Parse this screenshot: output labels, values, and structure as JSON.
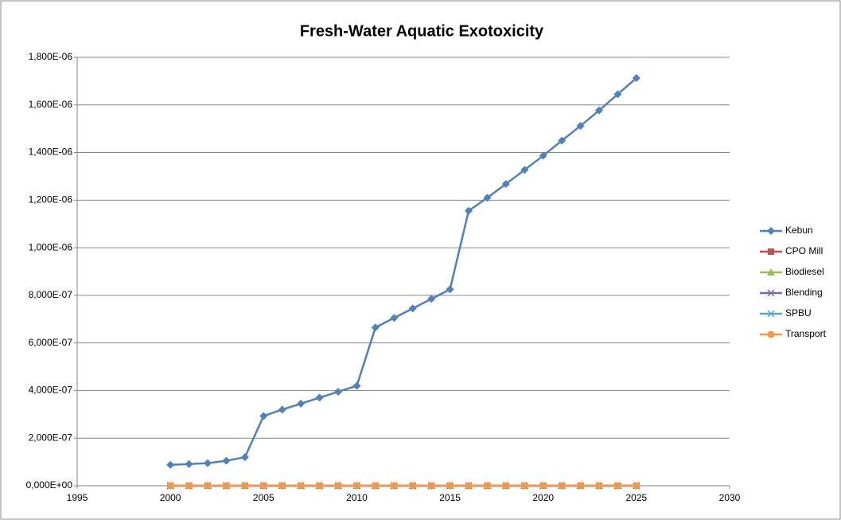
{
  "chart_data": {
    "type": "line",
    "title": "Fresh-Water Aquatic Exotoxicity",
    "x": [
      2000,
      2001,
      2002,
      2003,
      2004,
      2005,
      2006,
      2007,
      2008,
      2009,
      2010,
      2011,
      2012,
      2013,
      2014,
      2015,
      2016,
      2017,
      2018,
      2019,
      2020,
      2021,
      2022,
      2023,
      2024,
      2025
    ],
    "series": [
      {
        "name": "Kebun",
        "color": "#4f81bd",
        "marker": "diamond",
        "values": [
          8.8e-08,
          9.1e-08,
          9.5e-08,
          1.05e-07,
          1.2e-07,
          2.93e-07,
          3.2e-07,
          3.45e-07,
          3.7e-07,
          3.95e-07,
          4.2e-07,
          6.65e-07,
          7.05e-07,
          7.45e-07,
          7.85e-07,
          8.25e-07,
          1.155e-06,
          1.21e-06,
          1.268e-06,
          1.327e-06,
          1.387e-06,
          1.45e-06,
          1.512e-06,
          1.577e-06,
          1.645e-06,
          1.713e-06
        ]
      },
      {
        "name": "CPO Mill",
        "color": "#c0504d",
        "marker": "square",
        "values": [
          0,
          0,
          0,
          0,
          0,
          0,
          0,
          0,
          0,
          0,
          0,
          0,
          0,
          0,
          0,
          0,
          0,
          0,
          0,
          0,
          0,
          0,
          0,
          0,
          0,
          0
        ]
      },
      {
        "name": "Biodiesel",
        "color": "#9bbb59",
        "marker": "triangle",
        "values": [
          0,
          0,
          0,
          0,
          0,
          0,
          0,
          0,
          0,
          0,
          0,
          0,
          0,
          0,
          0,
          0,
          0,
          0,
          0,
          0,
          0,
          0,
          0,
          0,
          0,
          0
        ]
      },
      {
        "name": "Blending",
        "color": "#8064a2",
        "marker": "cross",
        "values": [
          0,
          0,
          0,
          0,
          0,
          0,
          0,
          0,
          0,
          0,
          0,
          0,
          0,
          0,
          0,
          0,
          0,
          0,
          0,
          0,
          0,
          0,
          0,
          0,
          0,
          0
        ]
      },
      {
        "name": "SPBU",
        "color": "#4bacc6",
        "marker": "star",
        "values": [
          0,
          0,
          0,
          0,
          0,
          0,
          0,
          0,
          0,
          0,
          0,
          0,
          0,
          0,
          0,
          0,
          0,
          0,
          0,
          0,
          0,
          0,
          0,
          0,
          0,
          0
        ]
      },
      {
        "name": "Transport",
        "color": "#f79646",
        "marker": "circle",
        "values": [
          0,
          0,
          0,
          0,
          0,
          0,
          0,
          0,
          0,
          0,
          0,
          0,
          0,
          0,
          0,
          0,
          0,
          0,
          0,
          0,
          0,
          0,
          0,
          0,
          0,
          0
        ]
      }
    ],
    "xlim": [
      1995,
      2030
    ],
    "xticks": [
      1995,
      2000,
      2005,
      2010,
      2015,
      2020,
      2025,
      2030
    ],
    "ylim": [
      0,
      1.8e-06
    ],
    "yticks": [
      {
        "value": 0,
        "label": "0,000E+00"
      },
      {
        "value": 2e-07,
        "label": "2,000E-07"
      },
      {
        "value": 4e-07,
        "label": "4,000E-07"
      },
      {
        "value": 6e-07,
        "label": "6,000E-07"
      },
      {
        "value": 8e-07,
        "label": "8,000E-07"
      },
      {
        "value": 1e-06,
        "label": "1,000E-06"
      },
      {
        "value": 1.2e-06,
        "label": "1,200E-06"
      },
      {
        "value": 1.4e-06,
        "label": "1,400E-06"
      },
      {
        "value": 1.6e-06,
        "label": "1,600E-06"
      },
      {
        "value": 1.8e-06,
        "label": "1,800E-06"
      }
    ],
    "grid": true,
    "legend": "right"
  }
}
